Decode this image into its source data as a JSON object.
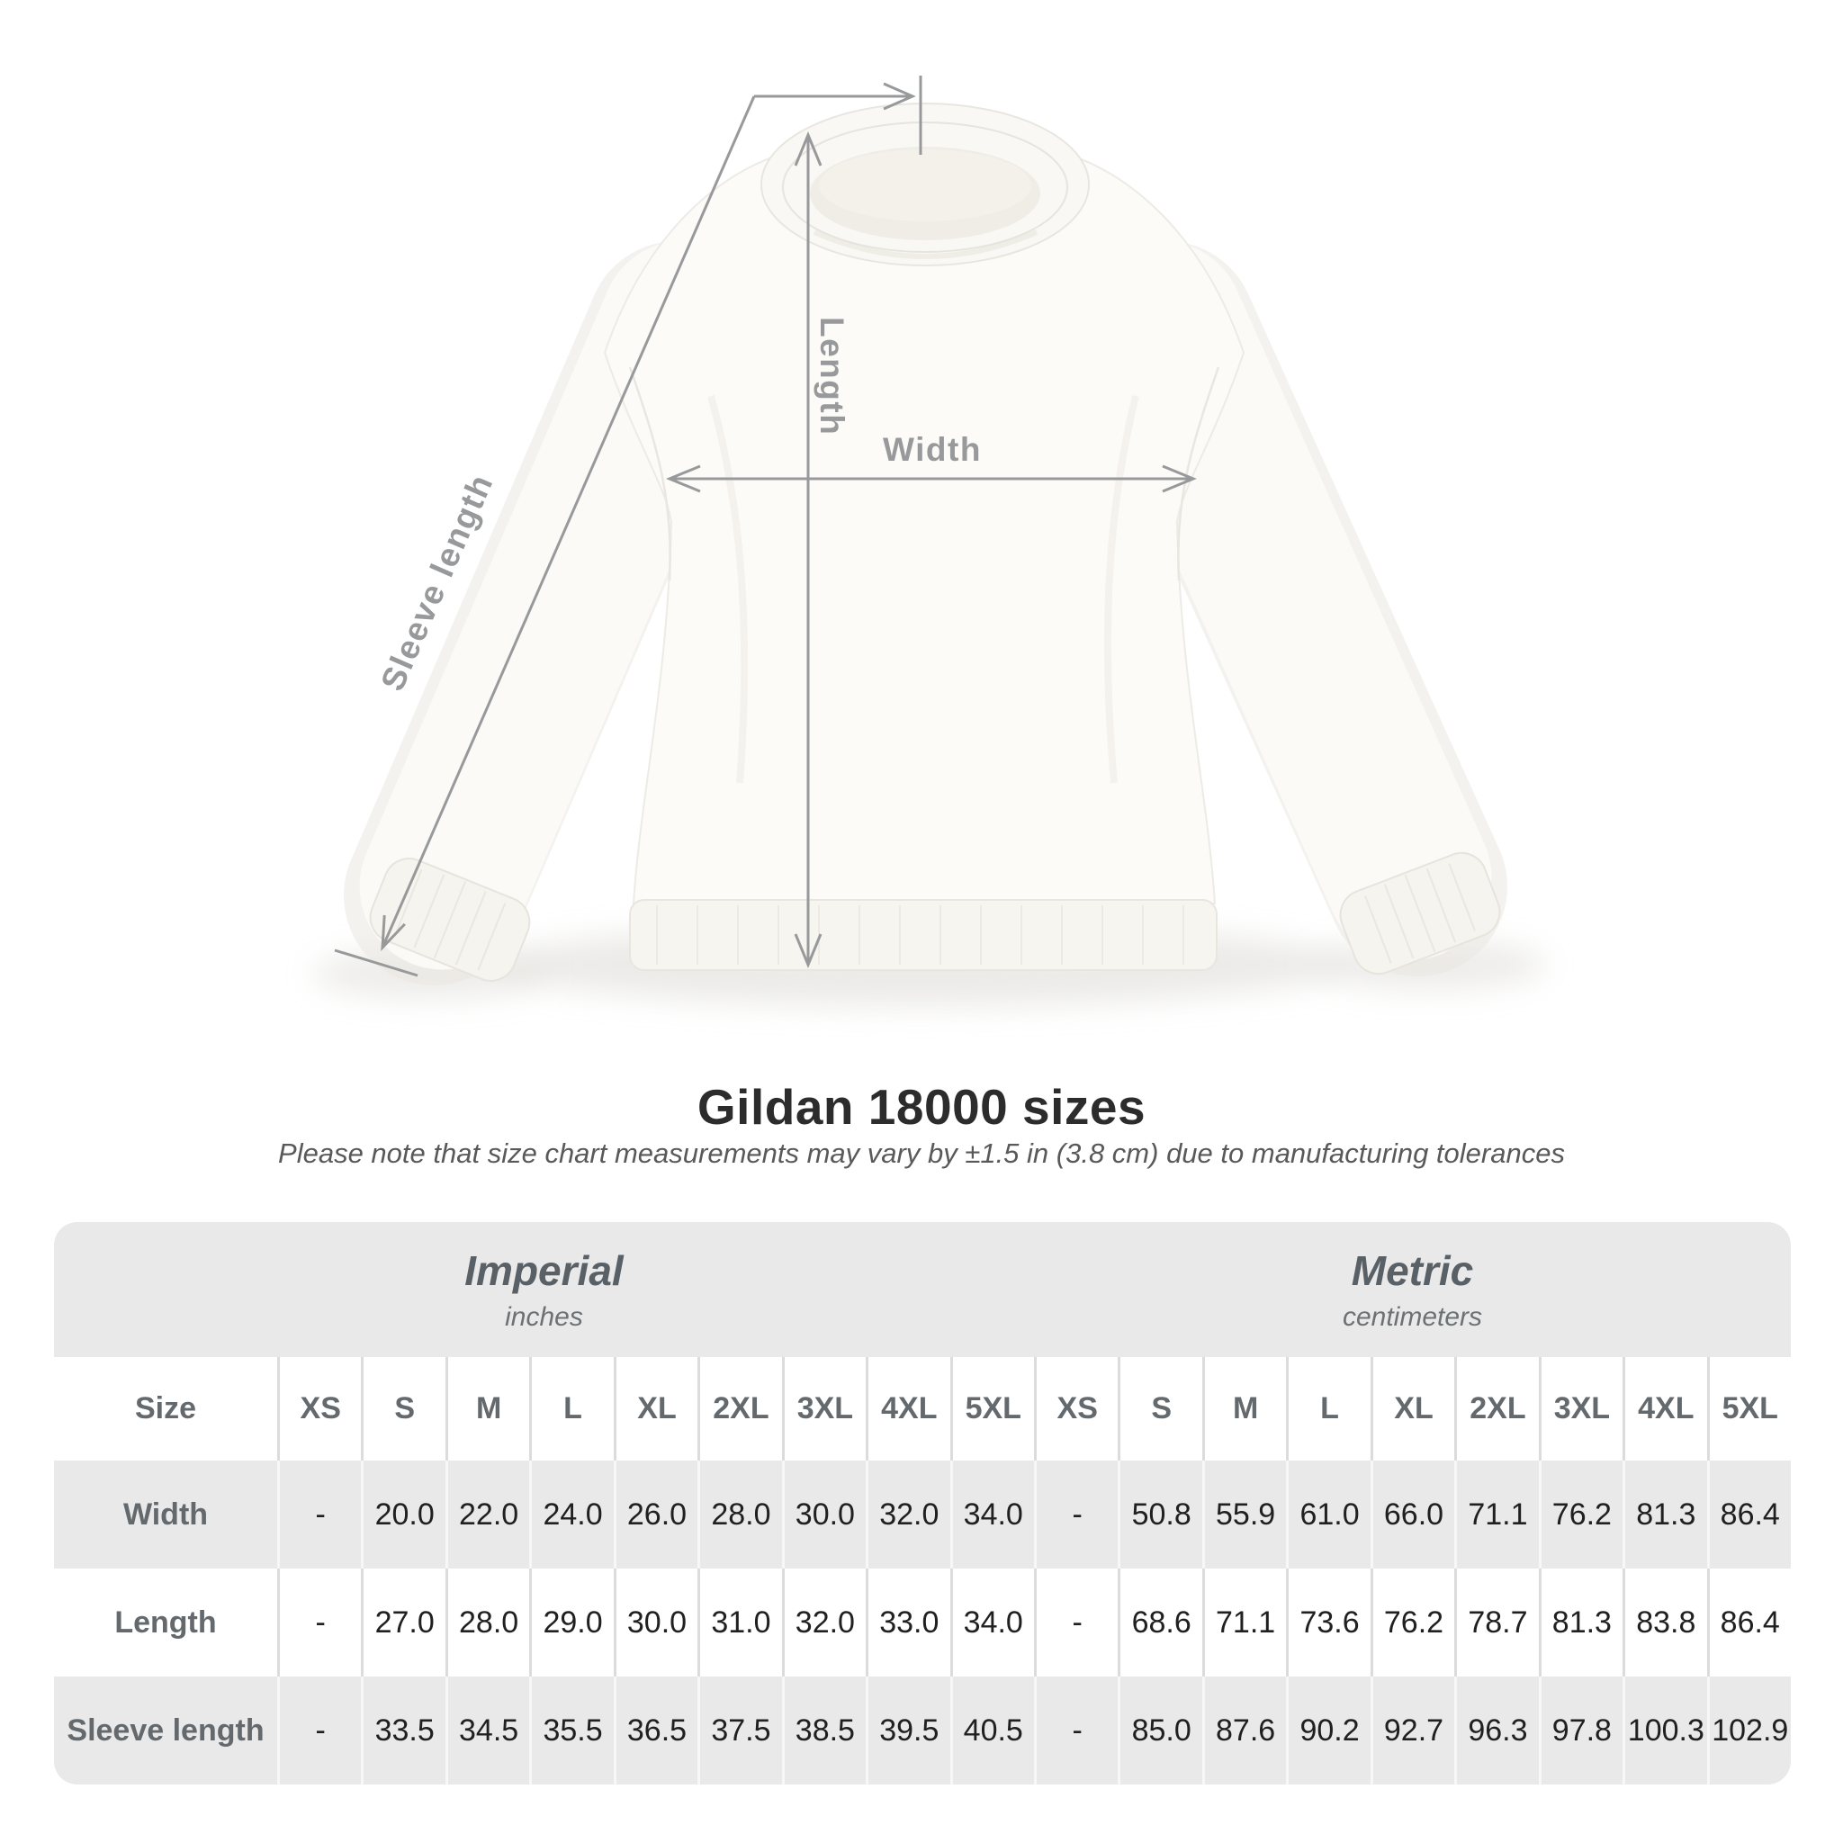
{
  "heading": {
    "title": "Gildan 18000 sizes",
    "subtitle": "Please note that size chart measurements may vary by ±1.5 in (3.8 cm) due to manufacturing tolerances"
  },
  "diagram": {
    "length_label": "Length",
    "width_label": "Width",
    "sleeve_label": "Sleeve length",
    "line_color": "#97999b"
  },
  "table": {
    "size_column_header": "Size",
    "units": [
      {
        "name": "Imperial",
        "sub": "inches"
      },
      {
        "name": "Metric",
        "sub": "centimeters"
      }
    ],
    "sizes": [
      "XS",
      "S",
      "M",
      "L",
      "XL",
      "2XL",
      "3XL",
      "4XL",
      "5XL"
    ],
    "rows": [
      {
        "label": "Width",
        "imperial": [
          "-",
          "20.0",
          "22.0",
          "24.0",
          "26.0",
          "28.0",
          "30.0",
          "32.0",
          "34.0"
        ],
        "metric": [
          "-",
          "50.8",
          "55.9",
          "61.0",
          "66.0",
          "71.1",
          "76.2",
          "81.3",
          "86.4"
        ]
      },
      {
        "label": "Length",
        "imperial": [
          "-",
          "27.0",
          "28.0",
          "29.0",
          "30.0",
          "31.0",
          "32.0",
          "33.0",
          "34.0"
        ],
        "metric": [
          "-",
          "68.6",
          "71.1",
          "73.6",
          "76.2",
          "78.7",
          "81.3",
          "83.8",
          "86.4"
        ]
      },
      {
        "label": "Sleeve length",
        "imperial": [
          "-",
          "33.5",
          "34.5",
          "35.5",
          "36.5",
          "37.5",
          "38.5",
          "39.5",
          "40.5"
        ],
        "metric": [
          "-",
          "85.0",
          "87.6",
          "90.2",
          "92.7",
          "96.3",
          "97.8",
          "100.3",
          "102.9"
        ]
      }
    ],
    "colors": {
      "band": "#e9e9e9",
      "header_text": "#63696d",
      "value_text": "#202020"
    }
  }
}
